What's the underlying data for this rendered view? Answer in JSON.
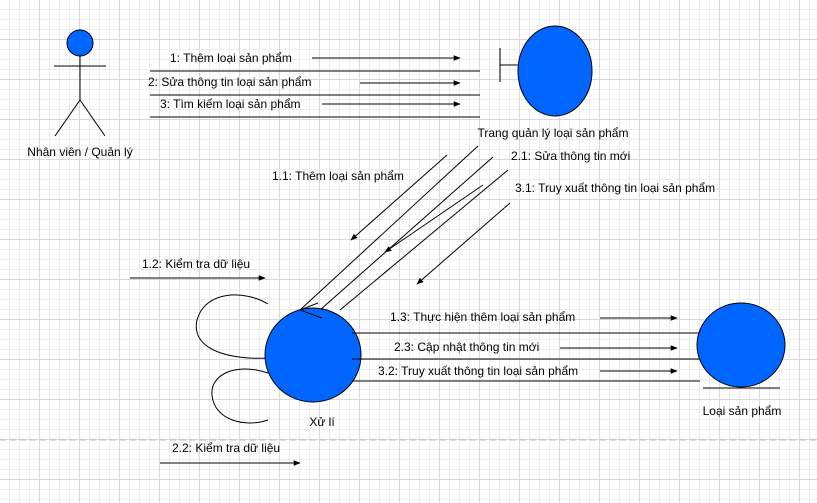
{
  "actors": {
    "user": {
      "label": "Nhân viên / Quản lý"
    },
    "boundary": {
      "label": "Trang quản lý loại sản phẩm"
    },
    "control": {
      "label": "Xử lí"
    },
    "entity": {
      "label": "Loại sản phẩm"
    }
  },
  "messages": {
    "m1": "1: Thêm loại sản phẩm",
    "m2": "2: Sửa thông tin loại sản phẩm",
    "m3": "3: Tìm kiếm loại sản phẩm",
    "m1_1": "1.1: Thêm loại sản phẩm",
    "m2_1": "2.1: Sửa thông tin mới",
    "m3_1": "3.1: Truy xuất thông tin loại sản phẩm",
    "m1_2": "1.2: Kiểm tra dữ liệu",
    "m1_3": "1.3: Thực hiện thêm loại sản phẩm",
    "m2_3": "2.3: Cập nhật thông tin mới",
    "m3_2": "3.2: Truy xuất thông tin loại sản phẩm",
    "m2_2": "2.2: Kiểm tra dữ liệu"
  },
  "colors": {
    "object_fill": "#0066ff",
    "stroke": "#000000",
    "page_break": "#bbbbbb"
  }
}
